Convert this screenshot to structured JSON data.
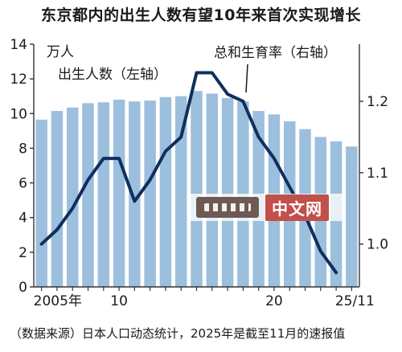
{
  "title": "东京都内的出生人数有望10年来首次实现增长",
  "source_note": "（数据来源）日本人口动态统计，2025年是截至11月的速报值",
  "watermark_text": "中文网",
  "chart_data": {
    "type": "bar+line",
    "left_unit": "万人",
    "bar_series_label": "出生人数（左轴）",
    "line_series_label": "总和生育率（右轴）",
    "x_tick_labels": [
      {
        "index": 0,
        "label": "2005年"
      },
      {
        "index": 5,
        "label": "10"
      },
      {
        "index": 15,
        "label": "20"
      },
      {
        "index": 20,
        "label": "25/11"
      }
    ],
    "years": [
      2005,
      2006,
      2007,
      2008,
      2009,
      2010,
      2011,
      2012,
      2013,
      2014,
      2015,
      2016,
      2017,
      2018,
      2019,
      2020,
      2021,
      2022,
      2023,
      2024,
      2025
    ],
    "births": [
      9.65,
      10.15,
      10.35,
      10.6,
      10.65,
      10.8,
      10.7,
      10.75,
      10.95,
      11.0,
      11.3,
      11.15,
      10.9,
      10.7,
      10.15,
      9.95,
      9.55,
      9.1,
      8.65,
      8.4,
      8.1
    ],
    "tfr": [
      1.0,
      1.02,
      1.05,
      1.09,
      1.12,
      1.12,
      1.06,
      1.09,
      1.13,
      1.15,
      1.24,
      1.24,
      1.21,
      1.2,
      1.15,
      1.12,
      1.08,
      1.04,
      0.99,
      0.96,
      null
    ],
    "left_axis": {
      "min": 0,
      "max": 14,
      "ticks": [
        0,
        2,
        4,
        6,
        8,
        10,
        12,
        14
      ]
    },
    "right_axis": {
      "min": 0.94,
      "max": 1.28,
      "ticks": [
        1.0,
        1.1,
        1.2
      ],
      "tick_labels": [
        "1.0",
        "1.1",
        "1.2"
      ]
    },
    "colors": {
      "bar": "#9dbfde",
      "line": "#0f2f5e",
      "axis": "#333333"
    }
  }
}
